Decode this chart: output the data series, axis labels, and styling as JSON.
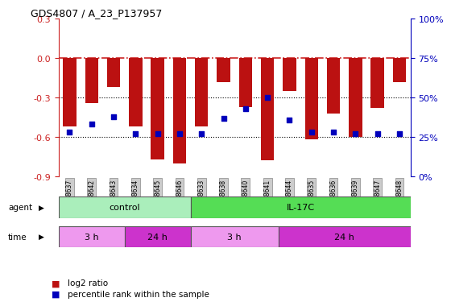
{
  "title": "GDS4807 / A_23_P137957",
  "samples": [
    "GSM808637",
    "GSM808642",
    "GSM808643",
    "GSM808634",
    "GSM808645",
    "GSM808646",
    "GSM808633",
    "GSM808638",
    "GSM808640",
    "GSM808641",
    "GSM808644",
    "GSM808635",
    "GSM808636",
    "GSM808639",
    "GSM808647",
    "GSM808648"
  ],
  "log2_ratio": [
    -0.52,
    -0.34,
    -0.22,
    -0.52,
    -0.77,
    -0.8,
    -0.52,
    -0.18,
    -0.37,
    -0.78,
    -0.25,
    -0.62,
    -0.42,
    -0.6,
    -0.38,
    -0.18
  ],
  "percentile": [
    28,
    33,
    38,
    27,
    27,
    27,
    27,
    37,
    43,
    50,
    36,
    28,
    28,
    27,
    27,
    27
  ],
  "ylim_min": -0.9,
  "ylim_max": 0.3,
  "yticks_left": [
    0.3,
    0.0,
    -0.3,
    -0.6,
    -0.9
  ],
  "ytick_right_vals": [
    100,
    75,
    50,
    25,
    0
  ],
  "bar_color": "#bb1111",
  "dot_color": "#0000bb",
  "zero_line_color": "#cc2222",
  "dotted_line_color": "#000000",
  "agent_control_color": "#aaeebb",
  "agent_il17c_color": "#55dd55",
  "time_3h_color": "#ee99ee",
  "time_24h_color": "#cc33cc",
  "control_label": "control",
  "il17c_label": "IL-17C",
  "time_3h_label": "3 h",
  "time_24h_label": "24 h",
  "legend_bar_label": "log2 ratio",
  "legend_dot_label": "percentile rank within the sample",
  "control_count": 6,
  "control_3h_count": 3,
  "control_24h_count": 3,
  "il17c_count": 10,
  "il17c_3h_count": 4,
  "il17c_24h_count": 6
}
